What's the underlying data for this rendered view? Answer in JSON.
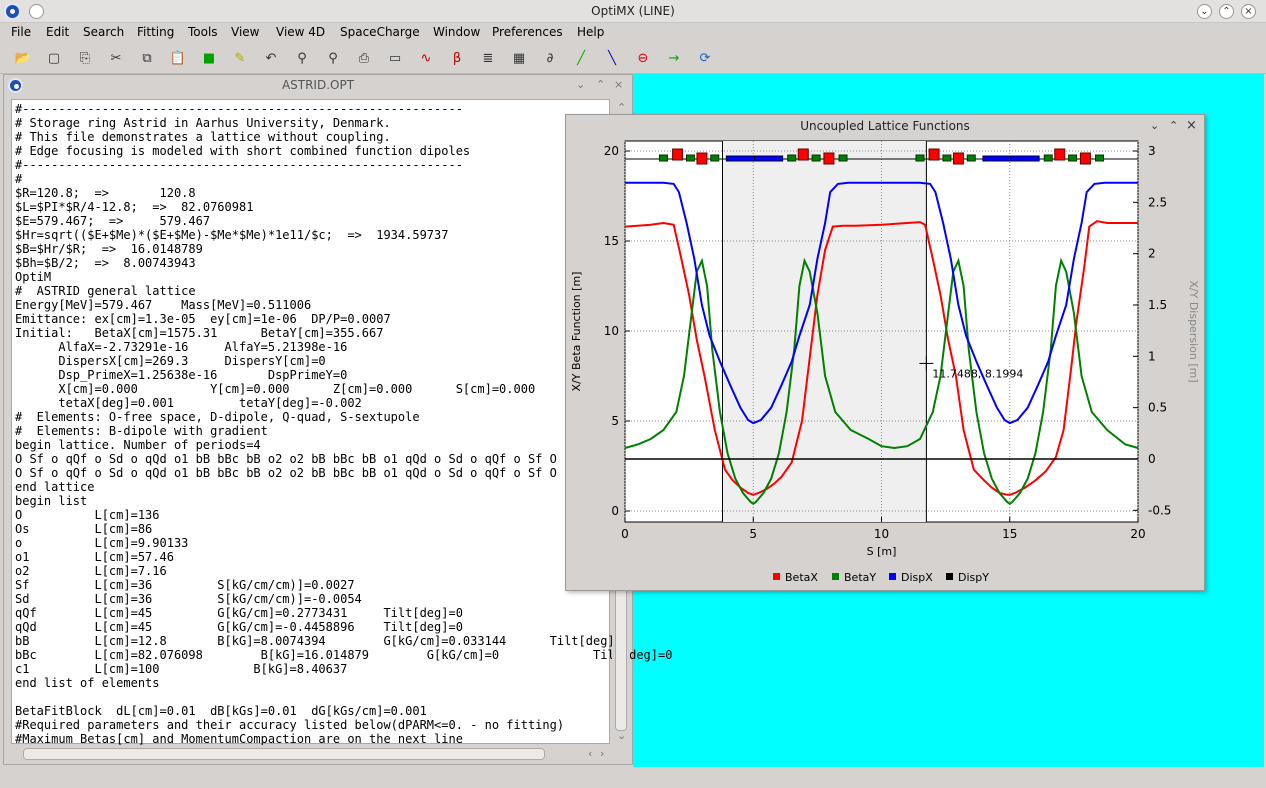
{
  "app": {
    "title": "OptiMX (LINE)"
  },
  "menu": [
    "File",
    "Edit",
    "Search",
    "Fitting",
    "Tools",
    "View",
    "View 4D",
    "SpaceCharge",
    "Window",
    "Preferences",
    "Help"
  ],
  "toolbar": {
    "icons": [
      "open-icon",
      "new-icon",
      "save-icon",
      "cut-icon",
      "copy-icon",
      "paste-icon",
      "green-square-icon",
      "wand-icon",
      "undo-icon",
      "lens-icon",
      "lens-plus-icon",
      "print-icon",
      "book-icon",
      "beta-plot-icon",
      "dispersion-plot-icon",
      "lines-icon",
      "grid-icon",
      "dxdy-icon",
      "fit-icon",
      "tracking-icon",
      "stop-icon",
      "step-icon",
      "refresh-icon"
    ]
  },
  "editor": {
    "title": "ASTRID.OPT",
    "lines": [
      "#-------------------------------------------------------------",
      "# Storage ring Astrid in Aarhus University, Denmark.",
      "# This file demonstrates a lattice without coupling.",
      "# Edge focusing is modeled with short combined function dipoles",
      "#-------------------------------------------------------------",
      "#",
      "$R=120.8;  =>       120.8",
      "$L=$PI*$R/4-12.8;  =>  82.0760981",
      "$E=579.467;  =>     579.467",
      "$Hr=sqrt(($E+$Me)*($E+$Me)-$Me*$Me)*1e11/$c;  =>  1934.59737",
      "$B=$Hr/$R;  =>  16.0148789",
      "$Bh=$B/2;  =>  8.00743943",
      "OptiM",
      "#  ASTRID general lattice",
      "Energy[MeV]=579.467    Mass[MeV]=0.511006",
      "Emittance: ex[cm]=1.3e-05  ey[cm]=1e-06  DP/P=0.0007",
      "Initial:   BetaX[cm]=1575.31      BetaY[cm]=355.667",
      "      AlfaX=-2.73291e-16     AlfaY=5.21398e-16",
      "      DispersX[cm]=269.3     DispersY[cm]=0",
      "      Dsp_PrimeX=1.25638e-16       DspPrimeY=0",
      "      X[cm]=0.000          Y[cm]=0.000      Z[cm]=0.000      S[cm]=0.000",
      "      tetaX[deg]=0.001         tetaY[deg]=-0.002",
      "#  Elements: O-free space, D-dipole, Q-quad, S-sextupole",
      "#  Elements: B-dipole with gradient",
      "begin lattice. Number of periods=4",
      "O Sf o qQf o Sd o qQd o1 bB bBc bB o2 o2 bB bBc bB o1 qQd o Sd o qQf o Sf O",
      "O Sf o qQf o Sd o qQd o1 bB bBc bB o2 o2 bB bBc bB o1 qQd o Sd o qQf o Sf O",
      "end lattice",
      "begin list",
      "O          L[cm]=136",
      "Os         L[cm]=86",
      "o          L[cm]=9.90133",
      "o1         L[cm]=57.46",
      "o2         L[cm]=7.16",
      "Sf         L[cm]=36         S[kG/cm/cm)]=0.0027",
      "Sd         L[cm]=36         S[kG/cm/cm)]=-0.0054",
      "qQf        L[cm]=45         G[kG/cm]=0.2773431     Tilt[deg]=0",
      "qQd        L[cm]=45         G[kG/cm]=-0.4458896    Tilt[deg]=0",
      "bB         L[cm]=12.8       B[kG]=8.0074394        G[kG/cm]=0.033144      Tilt[deg]=0",
      "bBc        L[cm]=82.076098        B[kG]=16.014879        G[kG/cm]=0             Tilt[deg]=0",
      "c1         L[cm]=100             B[kG]=8.40637",
      "end list of elements",
      "",
      "BetaFitBlock  dL[cm]=0.01  dB[kGs]=0.01  dG[kGs/cm]=0.001",
      "#Required parameters and their accuracy listed below(dPARM<=0. - no fitting)",
      "#Maximum Betas[cm] and MomentumCompaction are on the next line"
    ]
  },
  "plot": {
    "title": "Uncoupled Lattice Functions",
    "cursor_label": "11.7488, 8.1994",
    "legend": [
      "BetaX",
      "BetaY",
      "DispX",
      "DispY"
    ]
  },
  "chart_data": {
    "type": "line",
    "xlabel": "S [m]",
    "ylabel": "X/Y Beta Function [m]",
    "y2label": "X/Y Dispersion [m]",
    "xlim": [
      0,
      20
    ],
    "ylim": [
      0,
      20
    ],
    "y2lim": [
      -0.5,
      3
    ],
    "xticks": [
      0,
      5,
      10,
      15,
      20
    ],
    "yticks": [
      0,
      5,
      10,
      15,
      20
    ],
    "y2ticks": [
      -0.5,
      0,
      0.5,
      1,
      1.5,
      2,
      2.5,
      3
    ],
    "grid": true,
    "colors": {
      "BetaX": "#ff0000",
      "BetaY": "#008000",
      "DispX": "#0000ff",
      "DispY": "#000000"
    },
    "shaded_region": [
      3.8,
      11.75
    ],
    "vlines": [
      3.8,
      11.75
    ],
    "series": [
      {
        "name": "BetaX",
        "axis": "left",
        "x": [
          0,
          0.5,
          1,
          1.5,
          1.9,
          2.2,
          2.5,
          2.8,
          3.1,
          3.5,
          3.9,
          4.2,
          4.5,
          4.8,
          5,
          5.2,
          5.5,
          5.8,
          6.1,
          6.5,
          6.9,
          7.2,
          7.5,
          7.8,
          8.1,
          8.5,
          9,
          10,
          11,
          11.5,
          11.7,
          12,
          12.3,
          12.6,
          12.9,
          13.2,
          13.6,
          14,
          14.3,
          14.6,
          14.9,
          15,
          15.2,
          15.6,
          16,
          16.4,
          16.8,
          17.1,
          17.4,
          17.6,
          17.9,
          18.1,
          18.4,
          18.8,
          19.3,
          20
        ],
        "y": [
          15.8,
          15.85,
          15.9,
          16.0,
          15.9,
          14.0,
          12.0,
          9.5,
          7.5,
          4.5,
          2.3,
          1.7,
          1.3,
          1.0,
          0.9,
          1.0,
          1.2,
          1.5,
          1.9,
          2.7,
          5.0,
          8.5,
          12.0,
          14.5,
          15.8,
          15.85,
          15.85,
          15.9,
          16.0,
          16.05,
          15.9,
          14.0,
          12.0,
          9.5,
          7.5,
          4.5,
          2.3,
          1.7,
          1.3,
          1.0,
          0.9,
          0.9,
          1.0,
          1.3,
          1.7,
          2.2,
          3.0,
          4.5,
          8.0,
          10.5,
          13.5,
          15.8,
          16.1,
          16.0,
          16.0,
          16.0
        ]
      },
      {
        "name": "BetaY",
        "axis": "left",
        "x": [
          0,
          0.5,
          1,
          1.5,
          2,
          2.3,
          2.6,
          2.8,
          3,
          3.2,
          3.4,
          3.7,
          4,
          4.3,
          4.6,
          4.9,
          5,
          5.1,
          5.4,
          5.7,
          6,
          6.3,
          6.6,
          6.8,
          7,
          7.2,
          7.5,
          7.8,
          8.2,
          8.8,
          9.5,
          10,
          10.5,
          11,
          11.5,
          12,
          12.3,
          12.6,
          12.8,
          13,
          13.2,
          13.4,
          13.7,
          14,
          14.3,
          14.6,
          14.9,
          15,
          15.1,
          15.4,
          15.7,
          16,
          16.3,
          16.6,
          16.8,
          17,
          17.2,
          17.5,
          17.8,
          18.2,
          18.8,
          19.5,
          20
        ],
        "y": [
          3.5,
          3.7,
          4.0,
          4.5,
          5.5,
          7.5,
          11.0,
          13.3,
          13.9,
          12.5,
          9.0,
          5.5,
          3.2,
          1.8,
          1.0,
          0.5,
          0.4,
          0.5,
          1.0,
          1.8,
          3.2,
          5.5,
          9.0,
          12.5,
          13.9,
          13.3,
          11.0,
          7.5,
          5.5,
          4.5,
          4.0,
          3.6,
          3.5,
          3.6,
          4.0,
          5.5,
          7.5,
          11.0,
          13.3,
          13.9,
          12.5,
          9.0,
          5.5,
          3.2,
          1.8,
          1.0,
          0.5,
          0.4,
          0.5,
          1.0,
          1.8,
          3.2,
          5.5,
          9.0,
          12.5,
          13.9,
          13.3,
          11.0,
          7.5,
          5.5,
          4.5,
          3.7,
          3.5
        ]
      },
      {
        "name": "DispX",
        "axis": "right",
        "x": [
          0,
          0.5,
          1,
          1.5,
          1.9,
          2.1,
          2.4,
          2.7,
          3,
          3.3,
          3.7,
          4.1,
          4.5,
          4.8,
          5,
          5.3,
          5.7,
          6.1,
          6.5,
          6.8,
          7.2,
          7.5,
          7.8,
          8,
          8.3,
          8.7,
          9.5,
          10.5,
          11.5,
          11.9,
          12.1,
          12.4,
          12.7,
          13,
          13.3,
          13.7,
          14.1,
          14.5,
          14.8,
          15,
          15.3,
          15.7,
          16.1,
          16.5,
          16.8,
          17.2,
          17.5,
          17.8,
          18,
          18.3,
          18.7,
          19.5,
          20
        ],
        "y": [
          2.69,
          2.69,
          2.69,
          2.69,
          2.68,
          2.6,
          2.3,
          1.95,
          1.5,
          1.2,
          0.95,
          0.72,
          0.5,
          0.38,
          0.35,
          0.38,
          0.5,
          0.72,
          0.95,
          1.2,
          1.5,
          1.95,
          2.3,
          2.6,
          2.68,
          2.69,
          2.69,
          2.69,
          2.69,
          2.68,
          2.6,
          2.3,
          1.95,
          1.5,
          1.2,
          0.95,
          0.72,
          0.5,
          0.38,
          0.35,
          0.38,
          0.5,
          0.72,
          0.95,
          1.2,
          1.5,
          1.95,
          2.3,
          2.6,
          2.68,
          2.69,
          2.69,
          2.69
        ]
      },
      {
        "name": "DispY",
        "axis": "right",
        "x": [
          0,
          20
        ],
        "y": [
          0,
          0
        ]
      }
    ],
    "elements": [
      {
        "kind": "sext",
        "s": 1.5
      },
      {
        "kind": "dip",
        "s": 2.05
      },
      {
        "kind": "sext",
        "s": 2.55
      },
      {
        "kind": "dip",
        "s": 3.0
      },
      {
        "kind": "sext",
        "s": 3.5
      },
      {
        "kind": "quad",
        "s": 4.5
      },
      {
        "kind": "quad",
        "s": 5.6
      },
      {
        "kind": "sext",
        "s": 6.5
      },
      {
        "kind": "dip",
        "s": 6.95
      },
      {
        "kind": "sext",
        "s": 7.45
      },
      {
        "kind": "dip",
        "s": 7.95
      },
      {
        "kind": "sext",
        "s": 8.5
      },
      {
        "kind": "sext",
        "s": 11.5
      },
      {
        "kind": "dip",
        "s": 12.05
      },
      {
        "kind": "sext",
        "s": 12.55
      },
      {
        "kind": "dip",
        "s": 13.0
      },
      {
        "kind": "sext",
        "s": 13.5
      },
      {
        "kind": "quad",
        "s": 14.5
      },
      {
        "kind": "quad",
        "s": 15.6
      },
      {
        "kind": "sext",
        "s": 16.5
      },
      {
        "kind": "dip",
        "s": 16.95
      },
      {
        "kind": "sext",
        "s": 17.45
      },
      {
        "kind": "dip",
        "s": 17.95
      },
      {
        "kind": "sext",
        "s": 18.5
      }
    ]
  }
}
